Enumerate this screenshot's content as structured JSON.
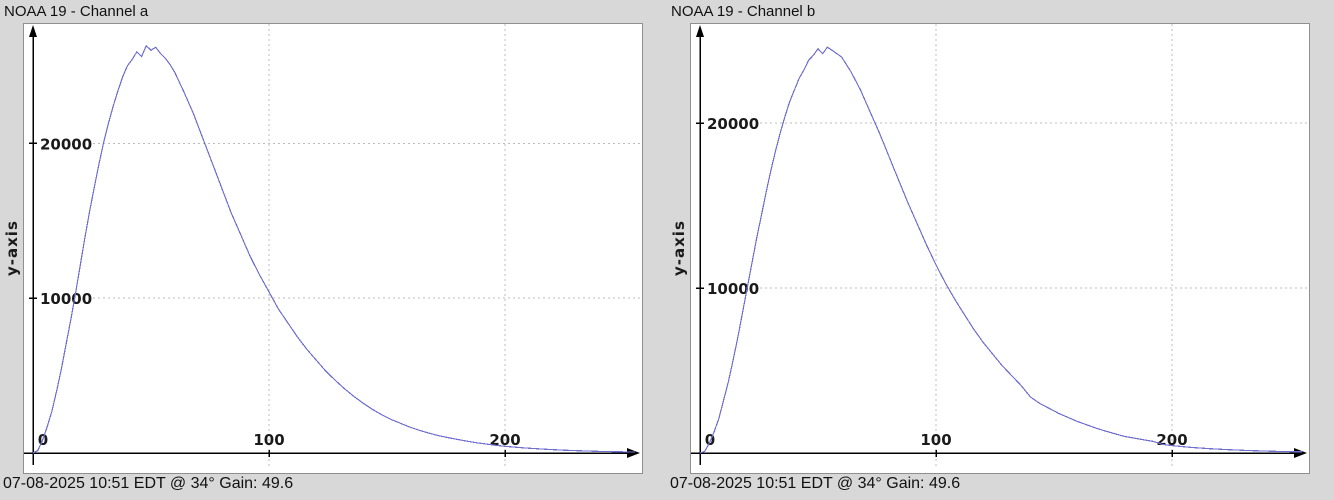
{
  "colors": {
    "background": "#d8d8d8",
    "plot_background": "#ffffff",
    "axis": "#000000",
    "grid": "#bdbdbd",
    "curve": "#6f6fd0",
    "text": "#1a1a1a"
  },
  "panels": [
    {
      "title": "NOAA 19 - Channel a",
      "y_axis_label": "y-axis",
      "status": "07-08-2025 10:51 EDT @ 34° Gain: 49.6"
    },
    {
      "title": "NOAA 19 - Channel b",
      "y_axis_label": "y-axis",
      "status": "07-08-2025 10:51 EDT @ 34° Gain: 49.6"
    }
  ],
  "chart_data": [
    {
      "type": "line",
      "title": "NOAA 19 - Channel a",
      "xlabel": "",
      "ylabel": "y-axis",
      "xlim": [
        0,
        255
      ],
      "ylim": [
        0,
        27700
      ],
      "x_ticks": [
        0,
        100,
        200
      ],
      "y_ticks": [
        10000,
        20000
      ],
      "grid": true,
      "legend_position": "none",
      "line_color": "#6f6fd0",
      "points": [
        [
          0,
          0
        ],
        [
          2,
          150
        ],
        [
          4,
          800
        ],
        [
          6,
          1700
        ],
        [
          8,
          2700
        ],
        [
          10,
          4000
        ],
        [
          12,
          5400
        ],
        [
          14,
          7000
        ],
        [
          16,
          8600
        ],
        [
          18,
          10300
        ],
        [
          20,
          12100
        ],
        [
          22,
          13900
        ],
        [
          24,
          15600
        ],
        [
          26,
          17200
        ],
        [
          28,
          18700
        ],
        [
          30,
          20100
        ],
        [
          32,
          21300
        ],
        [
          34,
          22400
        ],
        [
          36,
          23400
        ],
        [
          38,
          24300
        ],
        [
          40,
          25000
        ],
        [
          42,
          25400
        ],
        [
          44,
          25900
        ],
        [
          46,
          25600
        ],
        [
          48,
          26300
        ],
        [
          50,
          26000
        ],
        [
          52,
          26200
        ],
        [
          54,
          25800
        ],
        [
          56,
          25500
        ],
        [
          58,
          25100
        ],
        [
          60,
          24600
        ],
        [
          64,
          23300
        ],
        [
          68,
          21900
        ],
        [
          72,
          20300
        ],
        [
          76,
          18700
        ],
        [
          80,
          17100
        ],
        [
          84,
          15500
        ],
        [
          88,
          14100
        ],
        [
          92,
          12700
        ],
        [
          96,
          11500
        ],
        [
          100,
          10400
        ],
        [
          104,
          9300
        ],
        [
          108,
          8400
        ],
        [
          112,
          7500
        ],
        [
          116,
          6700
        ],
        [
          120,
          6000
        ],
        [
          124,
          5300
        ],
        [
          128,
          4700
        ],
        [
          132,
          4150
        ],
        [
          136,
          3650
        ],
        [
          140,
          3200
        ],
        [
          144,
          2800
        ],
        [
          148,
          2450
        ],
        [
          152,
          2150
        ],
        [
          156,
          1900
        ],
        [
          160,
          1650
        ],
        [
          164,
          1450
        ],
        [
          168,
          1270
        ],
        [
          172,
          1120
        ],
        [
          176,
          990
        ],
        [
          180,
          870
        ],
        [
          184,
          760
        ],
        [
          188,
          660
        ],
        [
          192,
          580
        ],
        [
          196,
          500
        ],
        [
          200,
          430
        ],
        [
          208,
          330
        ],
        [
          216,
          250
        ],
        [
          224,
          190
        ],
        [
          232,
          140
        ],
        [
          240,
          105
        ],
        [
          248,
          80
        ],
        [
          255,
          65
        ]
      ]
    },
    {
      "type": "line",
      "title": "NOAA 19 - Channel b",
      "xlabel": "",
      "ylabel": "y-axis",
      "xlim": [
        0,
        255
      ],
      "ylim": [
        0,
        26000
      ],
      "x_ticks": [
        0,
        100,
        200
      ],
      "y_ticks": [
        10000,
        20000
      ],
      "grid": true,
      "legend_position": "none",
      "line_color": "#6f6fd0",
      "points": [
        [
          0,
          0
        ],
        [
          2,
          100
        ],
        [
          4,
          600
        ],
        [
          6,
          1300
        ],
        [
          8,
          2100
        ],
        [
          10,
          3200
        ],
        [
          12,
          4300
        ],
        [
          14,
          5600
        ],
        [
          16,
          7000
        ],
        [
          18,
          8500
        ],
        [
          20,
          10000
        ],
        [
          22,
          11500
        ],
        [
          24,
          13000
        ],
        [
          26,
          14400
        ],
        [
          28,
          15800
        ],
        [
          30,
          17100
        ],
        [
          32,
          18300
        ],
        [
          34,
          19400
        ],
        [
          36,
          20400
        ],
        [
          38,
          21300
        ],
        [
          40,
          22000
        ],
        [
          42,
          22700
        ],
        [
          44,
          23200
        ],
        [
          46,
          23800
        ],
        [
          48,
          24100
        ],
        [
          50,
          24500
        ],
        [
          52,
          24200
        ],
        [
          54,
          24600
        ],
        [
          56,
          24400
        ],
        [
          58,
          24200
        ],
        [
          60,
          24000
        ],
        [
          64,
          23100
        ],
        [
          68,
          22000
        ],
        [
          72,
          20700
        ],
        [
          76,
          19400
        ],
        [
          80,
          18000
        ],
        [
          84,
          16600
        ],
        [
          88,
          15200
        ],
        [
          92,
          13900
        ],
        [
          96,
          12600
        ],
        [
          100,
          11400
        ],
        [
          104,
          10300
        ],
        [
          108,
          9300
        ],
        [
          112,
          8400
        ],
        [
          116,
          7500
        ],
        [
          120,
          6700
        ],
        [
          124,
          6000
        ],
        [
          128,
          5300
        ],
        [
          132,
          4700
        ],
        [
          136,
          4100
        ],
        [
          140,
          3400
        ],
        [
          144,
          3000
        ],
        [
          148,
          2700
        ],
        [
          152,
          2400
        ],
        [
          156,
          2150
        ],
        [
          160,
          1900
        ],
        [
          164,
          1700
        ],
        [
          168,
          1500
        ],
        [
          172,
          1320
        ],
        [
          176,
          1160
        ],
        [
          180,
          1000
        ],
        [
          184,
          900
        ],
        [
          188,
          800
        ],
        [
          192,
          700
        ],
        [
          196,
          520
        ],
        [
          200,
          450
        ],
        [
          208,
          340
        ],
        [
          216,
          260
        ],
        [
          224,
          200
        ],
        [
          232,
          150
        ],
        [
          240,
          115
        ],
        [
          248,
          85
        ],
        [
          255,
          70
        ]
      ]
    }
  ]
}
